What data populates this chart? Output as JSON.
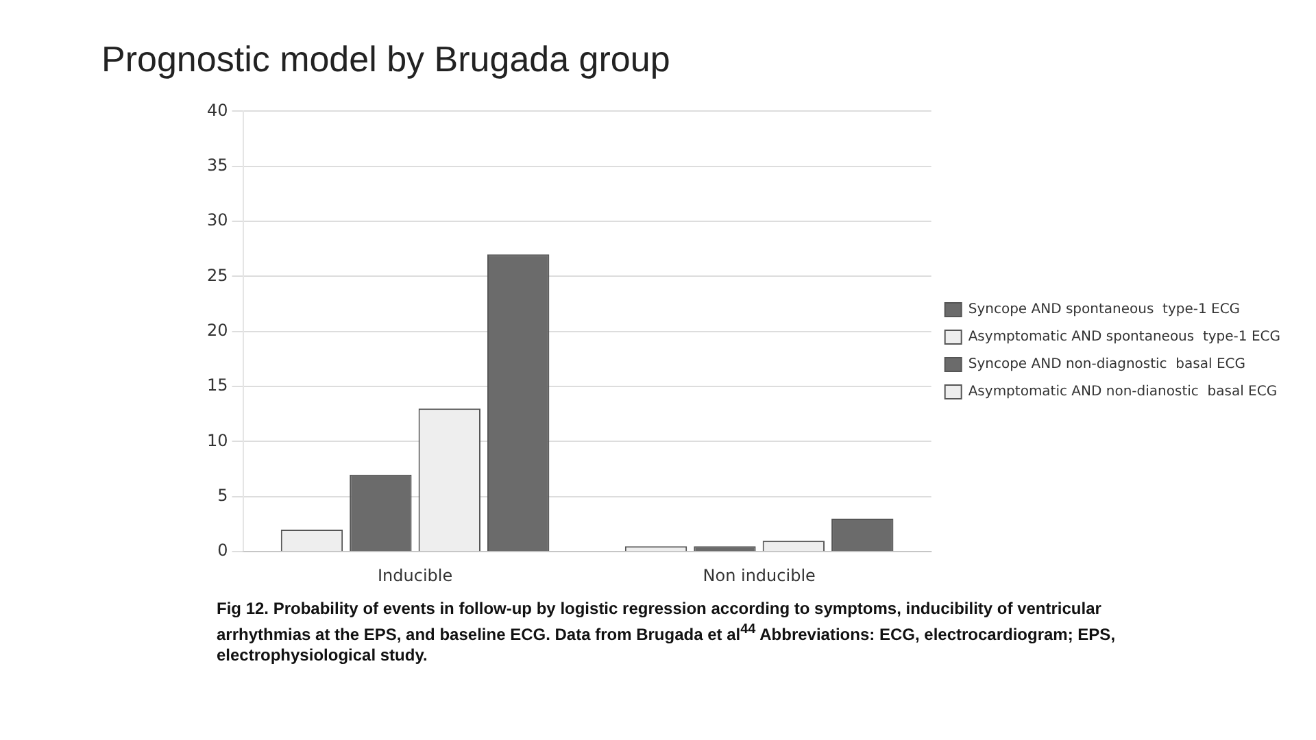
{
  "chart_data": {
    "type": "bar",
    "title": "Prognostic model by Brugada group",
    "categories": [
      "Inducible",
      "Non inducible"
    ],
    "series": [
      {
        "name": "Asymptomatic AND non-dianostic  basal ECG",
        "color": "#eeeeee",
        "values": [
          2,
          0.5
        ]
      },
      {
        "name": "Syncope AND non-diagnostic  basal ECG",
        "color": "#6b6b6b",
        "values": [
          7,
          0.5
        ]
      },
      {
        "name": "Asymptomatic AND spontaneous  type-1 ECG",
        "color": "#eeeeee",
        "values": [
          13,
          1
        ]
      },
      {
        "name": "Syncope AND spontaneous  type-1 ECG",
        "color": "#6b6b6b",
        "values": [
          27,
          3
        ]
      }
    ],
    "ylim": [
      0,
      40
    ],
    "yticks": [
      0,
      5,
      10,
      15,
      20,
      25,
      30,
      35,
      40
    ],
    "grid": "y",
    "legend": "right",
    "annotations": [
      "Fig 12. Probability of events in follow-up by logistic regression according to symptoms, inducibility of ventricular arrhythmias at the EPS, and baseline ECG. Data from Brugada et al$^{44}$ Abbreviations: ECG, electrocardiogram; EPS, electrophysiological study."
    ]
  }
}
